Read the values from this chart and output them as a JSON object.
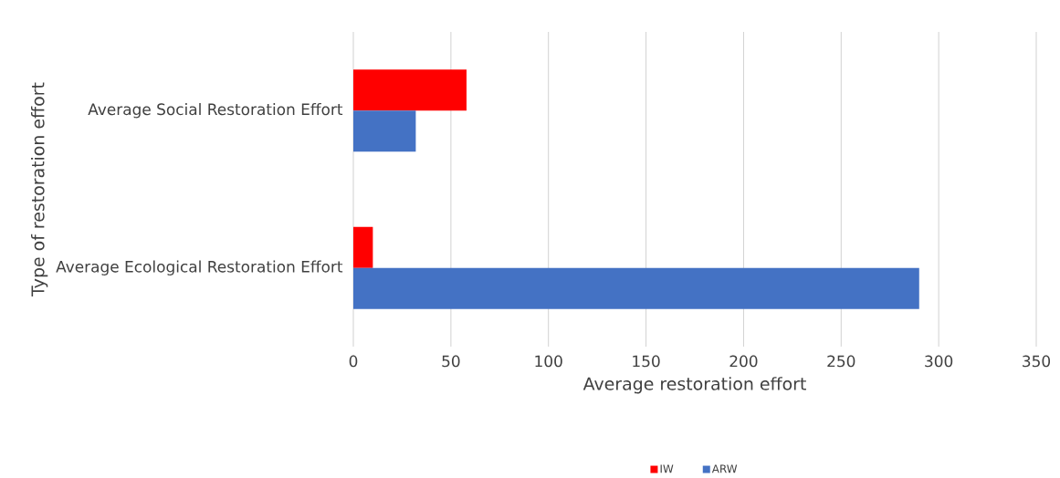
{
  "chart_data": {
    "type": "bar",
    "orientation": "horizontal",
    "categories": [
      "Average Social Restoration Effort",
      "Average Ecological Restoration Effort"
    ],
    "series": [
      {
        "name": "IW",
        "color": "#ff0000",
        "values": [
          58,
          10
        ]
      },
      {
        "name": "ARW",
        "color": "#4472c4",
        "values": [
          32,
          290
        ]
      }
    ],
    "xlim": [
      0,
      350
    ],
    "xticks": [
      0,
      50,
      100,
      150,
      200,
      250,
      300,
      350
    ],
    "xlabel": "Average restoration effort",
    "ylabel": "Type of restoration effort",
    "grid": "x",
    "legend": "bottom"
  }
}
